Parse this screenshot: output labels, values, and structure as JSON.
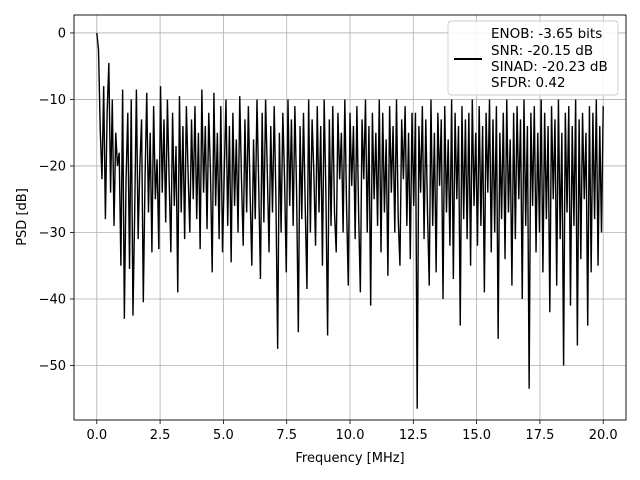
{
  "chart_data": {
    "type": "line",
    "xlabel": "Frequency [MHz]",
    "ylabel": "PSD [dB]",
    "xlim": [
      -0.9,
      20.9
    ],
    "ylim": [
      -58.2,
      2.7
    ],
    "xticks": [
      0.0,
      2.5,
      5.0,
      7.5,
      10.0,
      12.5,
      15.0,
      17.5,
      20.0
    ],
    "xtick_labels": [
      "0.0",
      "2.5",
      "5.0",
      "7.5",
      "10.0",
      "12.5",
      "15.0",
      "17.5",
      "20.0"
    ],
    "yticks": [
      0,
      -10,
      -20,
      -30,
      -40,
      -50
    ],
    "ytick_labels": [
      "0",
      "−10",
      "−20",
      "−30",
      "−40",
      "−50"
    ],
    "grid": true,
    "legend_position": "top-right",
    "series": [
      {
        "color": "#000000",
        "x_start": 0.0,
        "x_end": 20.0,
        "typical_range_db": [
          -29,
          -10
        ],
        "values": [
          0,
          -2.5,
          -14.5,
          -22,
          -8,
          -28,
          -12,
          -4.5,
          -24,
          -10,
          -29,
          -15,
          -20,
          -18,
          -35,
          -8.5,
          -43,
          -22,
          -12,
          -35.5,
          -10,
          -42.5,
          -27,
          -8.5,
          -31,
          -20,
          -13,
          -40.5,
          -22,
          -9,
          -27,
          -15,
          -33,
          -11,
          -25,
          -19,
          -32.5,
          -8,
          -24,
          -13,
          -28.5,
          -10,
          -22,
          -33,
          -12,
          -26,
          -17,
          -39,
          -9.5,
          -27,
          -14,
          -31,
          -11,
          -21,
          -30,
          -13,
          -25,
          -11,
          -28,
          -15,
          -32.5,
          -8.5,
          -24,
          -14,
          -29.5,
          -12,
          -21,
          -36,
          -9,
          -26,
          -15,
          -31,
          -11,
          -33,
          -21,
          -10,
          -29,
          -14,
          -34.5,
          -12,
          -26,
          -16,
          -30,
          -9.5,
          -22,
          -32,
          -13,
          -27,
          -11,
          -24,
          -35,
          -16,
          -28,
          -10,
          -23,
          -37,
          -12,
          -28.5,
          -10,
          -21,
          -33,
          -14,
          -27,
          -11,
          -25,
          -47.5,
          -15,
          -30,
          -12,
          -22,
          -36,
          -10,
          -26,
          -13,
          -29,
          -11,
          -24,
          -45,
          -14,
          -28,
          -12,
          -26,
          -38.5,
          -10,
          -30,
          -13,
          -21,
          -32,
          -11,
          -27,
          -14,
          -35,
          -10,
          -24,
          -45.5,
          -13,
          -29,
          -11,
          -27,
          -33,
          -12,
          -22,
          -15,
          -30,
          -10,
          -26,
          -38,
          -12,
          -23,
          -14,
          -31,
          -11,
          -27,
          -39,
          -13,
          -22,
          -10,
          -30,
          -14,
          -41,
          -12,
          -25,
          -15,
          -29,
          -10,
          -33,
          -12,
          -27,
          -16,
          -36.5,
          -11,
          -24,
          -14,
          -30,
          -10,
          -28,
          -35,
          -13,
          -22,
          -11,
          -29,
          -15,
          -34,
          -12,
          -26,
          -12,
          -56.5,
          -14,
          -24,
          -11,
          -31,
          -13,
          -27,
          -38,
          -10,
          -29,
          -15,
          -36,
          -12,
          -23,
          -13,
          -40,
          -11,
          -27,
          -16,
          -32,
          -10,
          -37,
          -12,
          -25,
          -14,
          -44,
          -11,
          -28,
          -13,
          -31,
          -12,
          -35,
          -10,
          -26,
          -15,
          -32,
          -11,
          -29,
          -14,
          -39,
          -12,
          -24,
          -10,
          -33,
          -13,
          -30,
          -11,
          -46,
          -15,
          -28,
          -12,
          -34,
          -10,
          -27,
          -16,
          -38,
          -12,
          -31,
          -11,
          -25,
          -13,
          -40,
          -10,
          -29,
          -14,
          -53.5,
          -12,
          -26,
          -11,
          -33,
          -15,
          -30,
          -10,
          -36,
          -12,
          -28,
          -14,
          -42,
          -11,
          -25,
          -13,
          -38,
          -10,
          -31,
          -15,
          -50,
          -12,
          -27,
          -11,
          -41,
          -14,
          -29,
          -10,
          -47,
          -13,
          -34,
          -12,
          -25,
          -15,
          -44,
          -11,
          -36,
          -12,
          -28,
          -10,
          -35,
          -14,
          -30,
          -11
        ]
      }
    ]
  },
  "legend": {
    "lines": [
      "ENOB: -3.65 bits",
      "SNR: -20.15 dB",
      "SINAD: -20.23 dB",
      "SFDR: 0.42"
    ]
  }
}
